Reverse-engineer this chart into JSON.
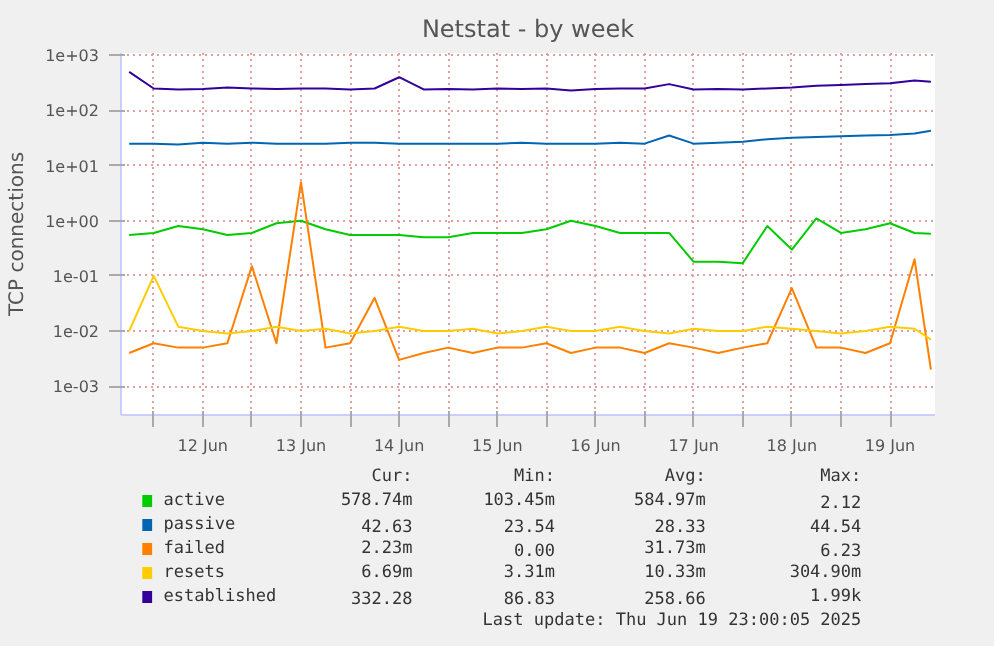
{
  "chart_data": {
    "type": "line",
    "title": "Netstat - by week",
    "ylabel": "TCP connections",
    "x": [
      "2025-06-11T18:00",
      "2025-06-12T00:00",
      "2025-06-12T06:00",
      "2025-06-12T12:00",
      "2025-06-12T18:00",
      "2025-06-13T00:00",
      "2025-06-13T06:00",
      "2025-06-13T12:00",
      "2025-06-13T18:00",
      "2025-06-14T00:00",
      "2025-06-14T06:00",
      "2025-06-14T12:00",
      "2025-06-14T18:00",
      "2025-06-15T00:00",
      "2025-06-15T06:00",
      "2025-06-15T12:00",
      "2025-06-15T18:00",
      "2025-06-16T00:00",
      "2025-06-16T06:00",
      "2025-06-16T12:00",
      "2025-06-16T18:00",
      "2025-06-17T00:00",
      "2025-06-17T06:00",
      "2025-06-17T12:00",
      "2025-06-17T18:00",
      "2025-06-18T00:00",
      "2025-06-18T06:00",
      "2025-06-18T12:00",
      "2025-06-18T18:00",
      "2025-06-19T00:00",
      "2025-06-19T06:00",
      "2025-06-19T12:00",
      "2025-06-19T18:00",
      "2025-06-19T22:00"
    ],
    "series": [
      {
        "name": "active",
        "color": "#00cc00",
        "values": [
          0.55,
          0.6,
          0.8,
          0.7,
          0.55,
          0.6,
          0.9,
          1.0,
          0.7,
          0.55,
          0.55,
          0.55,
          0.5,
          0.5,
          0.6,
          0.6,
          0.6,
          0.7,
          1.0,
          0.8,
          0.6,
          0.6,
          0.6,
          0.18,
          0.18,
          0.17,
          0.8,
          0.3,
          1.1,
          0.6,
          0.7,
          0.9,
          0.6,
          0.58
        ]
      },
      {
        "name": "passive",
        "color": "#0066b3",
        "values": [
          25,
          25,
          24,
          26,
          25,
          26,
          25,
          25,
          25,
          26,
          26,
          25,
          25,
          25,
          25,
          25,
          26,
          25,
          25,
          25,
          26,
          25,
          35,
          25,
          26,
          27,
          30,
          32,
          33,
          34,
          35,
          36,
          38,
          43
        ]
      },
      {
        "name": "failed",
        "color": "#ff8000",
        "values": [
          0.004,
          0.006,
          0.005,
          0.005,
          0.006,
          0.15,
          0.006,
          5,
          0.005,
          0.006,
          0.04,
          0.003,
          0.004,
          0.005,
          0.004,
          0.005,
          0.005,
          0.006,
          0.004,
          0.005,
          0.005,
          0.004,
          0.006,
          0.005,
          0.004,
          0.005,
          0.006,
          0.06,
          0.005,
          0.005,
          0.004,
          0.006,
          0.2,
          0.002
        ]
      },
      {
        "name": "resets",
        "color": "#ffcc00",
        "values": [
          0.01,
          0.1,
          0.012,
          0.01,
          0.009,
          0.01,
          0.012,
          0.01,
          0.011,
          0.009,
          0.01,
          0.012,
          0.01,
          0.01,
          0.011,
          0.009,
          0.01,
          0.012,
          0.01,
          0.01,
          0.012,
          0.01,
          0.009,
          0.011,
          0.01,
          0.01,
          0.012,
          0.011,
          0.01,
          0.009,
          0.01,
          0.012,
          0.011,
          0.007
        ]
      },
      {
        "name": "established",
        "color": "#330099",
        "values": [
          500,
          250,
          240,
          245,
          260,
          250,
          245,
          250,
          250,
          240,
          250,
          400,
          240,
          245,
          240,
          250,
          245,
          250,
          230,
          245,
          250,
          250,
          300,
          240,
          245,
          240,
          250,
          260,
          280,
          290,
          300,
          310,
          350,
          332
        ]
      }
    ],
    "xlim": [
      "2025-06-11T16:00",
      "2025-06-19T23:00"
    ],
    "xticks": [
      {
        "value": "2025-06-12",
        "label": null
      },
      {
        "value": "2025-06-12T12:00",
        "label": "12 Jun"
      },
      {
        "value": "2025-06-13",
        "label": null
      },
      {
        "value": "2025-06-13T12:00",
        "label": "13 Jun"
      },
      {
        "value": "2025-06-14",
        "label": null
      },
      {
        "value": "2025-06-14T12:00",
        "label": "14 Jun"
      },
      {
        "value": "2025-06-15",
        "label": null
      },
      {
        "value": "2025-06-15T12:00",
        "label": "15 Jun"
      },
      {
        "value": "2025-06-16",
        "label": null
      },
      {
        "value": "2025-06-16T12:00",
        "label": "16 Jun"
      },
      {
        "value": "2025-06-17",
        "label": null
      },
      {
        "value": "2025-06-17T12:00",
        "label": "17 Jun"
      },
      {
        "value": "2025-06-18",
        "label": null
      },
      {
        "value": "2025-06-18T12:00",
        "label": "18 Jun"
      },
      {
        "value": "2025-06-19",
        "label": null
      },
      {
        "value": "2025-06-19T12:00",
        "label": "19 Jun"
      }
    ],
    "ylim": [
      0.0003,
      1100
    ],
    "log": true,
    "yticks": [
      {
        "value": 0.001,
        "label": "1e-03"
      },
      {
        "value": 0.01,
        "label": "1e-02"
      },
      {
        "value": 0.1,
        "label": "1e-01"
      },
      {
        "value": 1,
        "label": "1e+00"
      },
      {
        "value": 10,
        "label": "1e+01"
      },
      {
        "value": 100,
        "label": "1e+02"
      },
      {
        "value": 1000,
        "label": "1e+03"
      }
    ],
    "grid": true,
    "legend": "bottom",
    "marker": "none",
    "line_style": "solid",
    "annotations": [
      "Cur:",
      "Min:",
      "Avg:",
      "Max:",
      "578.74m",
      "103.45m",
      "584.97m",
      "2.12",
      "42.63",
      "23.54",
      "28.33",
      "44.54",
      "2.23m",
      "0.00",
      "31.73m",
      "6.23",
      "6.69m",
      "3.31m",
      "10.33m",
      "304.90m",
      "332.28",
      "86.83",
      "258.66",
      "1.99k",
      "Last update: Thu Jun 19 23:00:05 2025"
    ]
  }
}
